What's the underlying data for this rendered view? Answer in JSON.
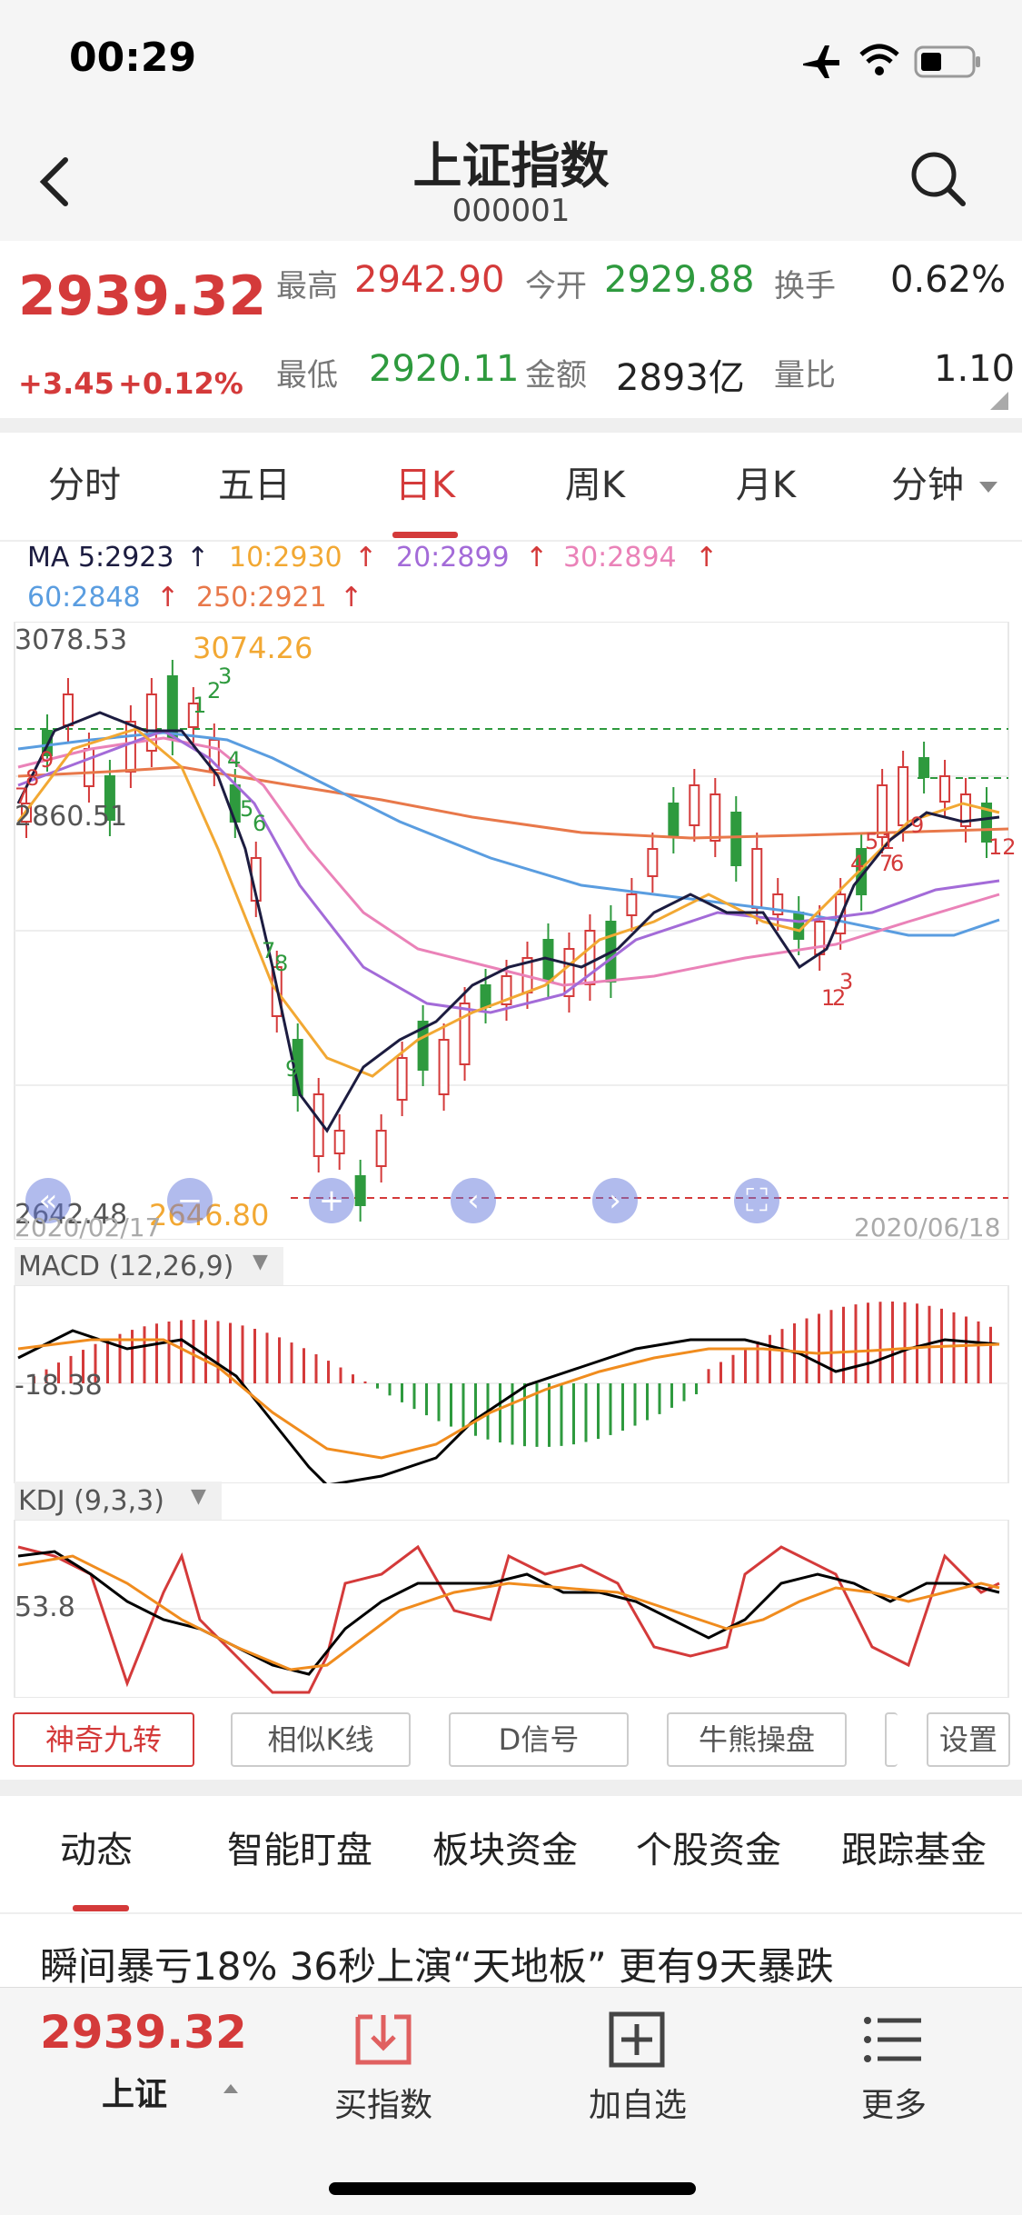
{
  "status_bar": {
    "time": "00:29"
  },
  "header": {
    "title": "上证指数",
    "code": "000001"
  },
  "quote": {
    "price": "2939.32",
    "change": "+3.45",
    "change_pct": "+0.12%",
    "high_label": "最高",
    "high": "2942.90",
    "open_label": "今开",
    "open": "2929.88",
    "turnover_label": "换手",
    "turnover": "0.62%",
    "low_label": "最低",
    "low": "2920.11",
    "amount_label": "金额",
    "amount": "2893亿",
    "ratio_label": "量比",
    "ratio": "1.10"
  },
  "tabs": [
    {
      "label": "分时"
    },
    {
      "label": "五日"
    },
    {
      "label": "日K"
    },
    {
      "label": "周K"
    },
    {
      "label": "月K"
    },
    {
      "label": "分钟"
    }
  ],
  "ma": {
    "ma5": "MA 5:2923",
    "ma10": "10:2930",
    "ma20": "20:2899",
    "ma30": "30:2894",
    "ma60": "60:2848",
    "ma250": "250:2921"
  },
  "kline": {
    "y_top": "3078.53",
    "y_mid": "2860.51",
    "y_bot": "2642.48",
    "high_mark": "3074.26",
    "low_mark": "2646.80",
    "date_start": "2020/02/17",
    "date_end": "2020/06/18",
    "td_numbers": [
      "7",
      "8",
      "9",
      "1",
      "2",
      "3",
      "4",
      "5",
      "6",
      "7",
      "8",
      "9",
      "5",
      "4",
      "6",
      "1",
      "7",
      "9",
      "3",
      "1",
      "2",
      "12"
    ]
  },
  "macd": {
    "label": "MACD (12,26,9)",
    "value": "-18.38"
  },
  "kdj": {
    "label": "KDJ (9,3,3)",
    "value": "53.8"
  },
  "tools": [
    {
      "label": "神奇九转"
    },
    {
      "label": "相似K线"
    },
    {
      "label": "D信号"
    },
    {
      "label": "牛熊操盘"
    },
    {
      "label": "设置"
    }
  ],
  "news_tabs": [
    {
      "label": "动态"
    },
    {
      "label": "智能盯盘"
    },
    {
      "label": "板块资金"
    },
    {
      "label": "个股资金"
    },
    {
      "label": "跟踪基金"
    }
  ],
  "headline": "瞬间暴亏18% 36秒上演“天地板” 更有9天暴跌",
  "bottom_bar": {
    "price": "2939.32",
    "name": "上证",
    "buy": "买指数",
    "add": "加自选",
    "more": "更多"
  },
  "colors": {
    "accent_red": "#d43a3a",
    "green": "#2e9a3e",
    "ma5": "#1c1c40",
    "ma10": "#f2a833",
    "ma20": "#a36bd8",
    "ma30": "#ea82b8",
    "ma60": "#5a9de0",
    "ma250": "#e8784a"
  }
}
